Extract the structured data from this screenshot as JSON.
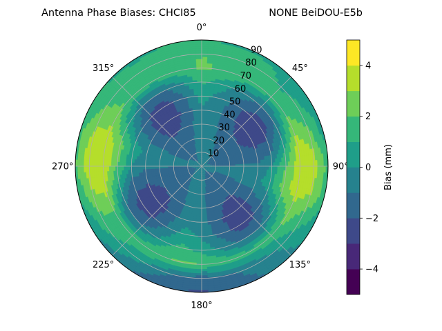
{
  "chart_data": {
    "type": "heatmap",
    "projection": "polar",
    "title_left": "Antenna Phase Biases: CHCI85",
    "title_right": "NONE BeiDOU-E5b",
    "angle_labels": [
      "0°",
      "45°",
      "90°",
      "135°",
      "180°",
      "225°",
      "270°",
      "315°"
    ],
    "angle_values": [
      0,
      45,
      90,
      135,
      180,
      225,
      270,
      315
    ],
    "radial_labels": [
      "10",
      "20",
      "30",
      "40",
      "50",
      "60",
      "70",
      "80",
      "90"
    ],
    "radial_values": [
      10,
      20,
      30,
      40,
      50,
      60,
      70,
      80,
      90
    ],
    "radial_range": [
      0,
      90
    ],
    "theta_direction": "clockwise",
    "theta_zero": "top",
    "grid": true,
    "colorbar": {
      "label": "Bias (mm)",
      "range": [
        -5,
        5
      ],
      "levels": [
        -5,
        -4,
        -3,
        -2,
        -1,
        0,
        1,
        2,
        3,
        4,
        5
      ],
      "tick_values": [
        -4,
        -2,
        0,
        2,
        4
      ],
      "tick_labels": [
        "−4",
        "−2",
        "0",
        "2",
        "4"
      ],
      "colors": [
        "#440154",
        "#482878",
        "#3e4989",
        "#31688e",
        "#26828e",
        "#1f9e89",
        "#35b779",
        "#6ece58",
        "#b5de2b",
        "#fde725"
      ]
    },
    "grid_values": {
      "azimuth_step_deg": 15,
      "elevation_rows": [
        0,
        10,
        20,
        30,
        40,
        50,
        60,
        70,
        80,
        90
      ],
      "rows": [
        [
          -0.9,
          -0.9,
          -0.9,
          -0.9,
          -0.9,
          -0.9,
          -0.9,
          -0.9,
          -0.9,
          -0.9,
          -0.9,
          -0.9,
          -0.9,
          -0.9,
          -0.9,
          -0.9,
          -0.9,
          -0.9,
          -0.9,
          -0.9,
          -0.9,
          -0.9,
          -0.9,
          -0.9
        ],
        [
          -0.8,
          -0.8,
          -0.9,
          -1.0,
          -1.1,
          -1.1,
          -1.0,
          -1.0,
          -1.0,
          -1.1,
          -1.1,
          -1.0,
          -0.9,
          -0.9,
          -0.9,
          -1.0,
          -1.1,
          -1.1,
          -1.0,
          -1.0,
          -1.0,
          -1.1,
          -1.1,
          -0.9
        ],
        [
          -0.6,
          -0.7,
          -1.0,
          -1.3,
          -1.4,
          -1.3,
          -1.0,
          -0.9,
          -1.2,
          -1.5,
          -1.4,
          -1.1,
          -0.9,
          -0.8,
          -1.0,
          -1.3,
          -1.4,
          -1.3,
          -1.0,
          -0.9,
          -1.2,
          -1.5,
          -1.4,
          -1.0
        ],
        [
          -0.4,
          -0.7,
          -1.3,
          -1.9,
          -2.0,
          -1.5,
          -0.9,
          -0.6,
          -1.3,
          -2.1,
          -2.0,
          -1.3,
          -0.8,
          -0.6,
          -1.2,
          -1.9,
          -2.0,
          -1.5,
          -0.9,
          -0.6,
          -1.3,
          -2.1,
          -2.0,
          -1.2
        ],
        [
          -0.1,
          -0.6,
          -1.6,
          -2.5,
          -2.6,
          -1.8,
          -0.8,
          -0.4,
          -1.3,
          -2.6,
          -2.6,
          -1.5,
          -0.6,
          -0.4,
          -1.3,
          -2.4,
          -2.6,
          -1.8,
          -0.8,
          -0.4,
          -1.3,
          -2.6,
          -2.6,
          -1.5
        ],
        [
          0.4,
          -0.4,
          -1.5,
          -2.5,
          -2.5,
          -1.5,
          0.1,
          0.7,
          -0.8,
          -2.4,
          -2.5,
          -1.3,
          -0.2,
          0.4,
          -0.9,
          -2.3,
          -2.5,
          -1.5,
          0.0,
          0.7,
          -0.8,
          -2.4,
          -2.5,
          -1.2
        ],
        [
          1.2,
          0.5,
          -0.5,
          -1.2,
          -1.0,
          0.4,
          2.0,
          2.5,
          0.6,
          -1.0,
          -1.2,
          -0.4,
          0.7,
          1.3,
          0.2,
          -1.0,
          -1.2,
          0.3,
          2.0,
          2.6,
          0.7,
          -1.0,
          -1.2,
          -0.4
        ],
        [
          2.1,
          1.9,
          1.5,
          1.4,
          2.1,
          3.3,
          3.8,
          3.5,
          2.4,
          1.6,
          1.4,
          1.6,
          2.0,
          2.1,
          1.8,
          1.5,
          1.9,
          3.2,
          3.9,
          3.6,
          2.5,
          1.6,
          1.4,
          1.7
        ],
        [
          2.0,
          1.8,
          1.4,
          0.9,
          1.2,
          2.5,
          3.6,
          3.0,
          1.4,
          0.2,
          -0.6,
          -1.1,
          -1.5,
          -1.0,
          0.0,
          0.8,
          1.5,
          2.8,
          3.8,
          3.4,
          2.1,
          1.4,
          1.3,
          1.7
        ],
        [
          1.0,
          0.9,
          0.9,
          0.8,
          0.6,
          0.6,
          1.6,
          1.4,
          0.4,
          -0.4,
          -1.0,
          -1.6,
          -2.1,
          -2.0,
          -1.3,
          -0.6,
          0.2,
          1.0,
          1.9,
          1.7,
          1.1,
          0.9,
          0.9,
          1.0
        ]
      ]
    }
  }
}
